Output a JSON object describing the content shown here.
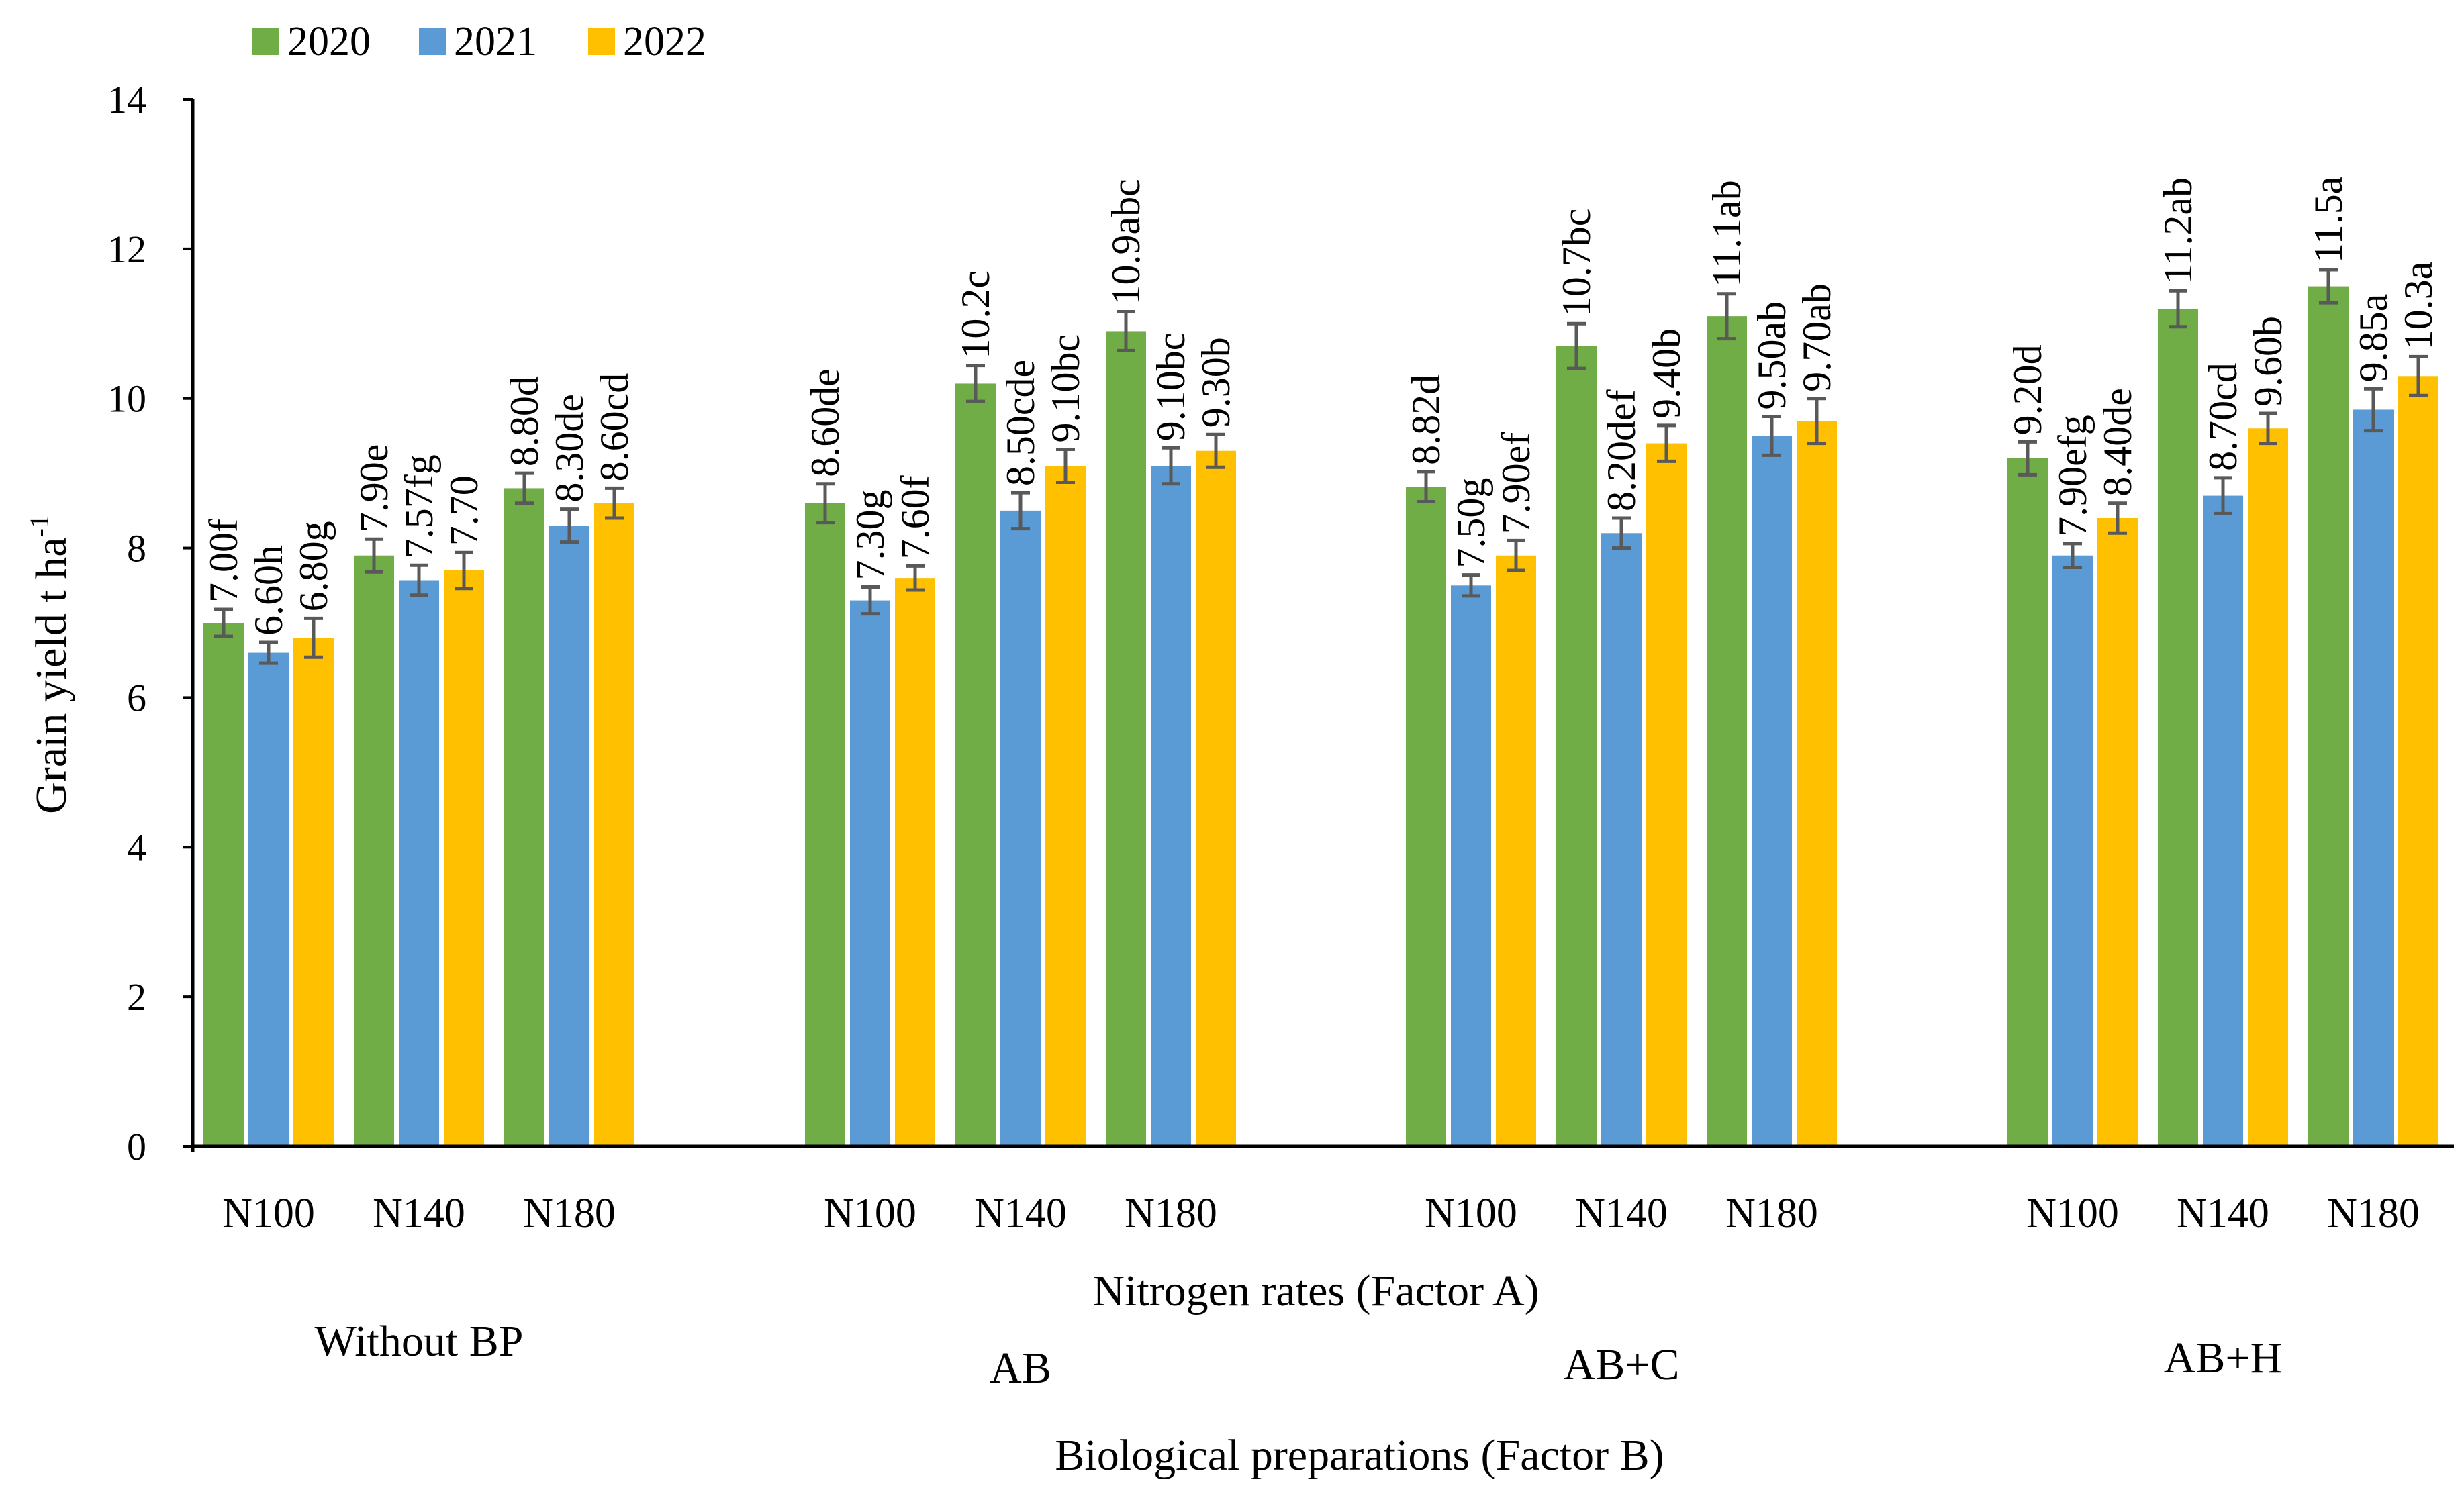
{
  "chart_data": {
    "type": "bar",
    "title": "",
    "ylabel": "Grain yield t ha",
    "ylabel_superscript": "-1",
    "xlabel_inner": "Nitrogen rates (Factor A)",
    "xlabel_outer": "Biological preparations (Factor B)",
    "ylim": [
      0,
      14
    ],
    "yticks": [
      "0",
      "2",
      "4",
      "6",
      "8",
      "10",
      "12",
      "14"
    ],
    "legend": [
      "2020",
      "2021",
      "2022"
    ],
    "colors": {
      "2020": "#70ad47",
      "2021": "#5b9bd5",
      "2022": "#ffc000",
      "error_bar": "#595959",
      "axis": "#000000"
    },
    "groups": [
      {
        "name": "Without BP",
        "categories": [
          {
            "name": "N100",
            "values": [
              7.0,
              6.6,
              6.8
            ],
            "errors": [
              0.18,
              0.14,
              0.26
            ],
            "labels": [
              "7.00f",
              "6.60h",
              "6.80g"
            ]
          },
          {
            "name": "N140",
            "values": [
              7.9,
              7.57,
              7.7
            ],
            "errors": [
              0.22,
              0.2,
              0.24
            ],
            "labels": [
              "7.90e",
              "7.57fg",
              "7.70"
            ]
          },
          {
            "name": "N180",
            "values": [
              8.8,
              8.3,
              8.6
            ],
            "errors": [
              0.2,
              0.22,
              0.2
            ],
            "labels": [
              "8.80d",
              "8.30de",
              "8.60cd"
            ]
          }
        ]
      },
      {
        "name": "AB",
        "categories": [
          {
            "name": "N100",
            "values": [
              8.6,
              7.3,
              7.6
            ],
            "errors": [
              0.26,
              0.18,
              0.16
            ],
            "labels": [
              "8.60de",
              "7.30g",
              "7.60f"
            ]
          },
          {
            "name": "N140",
            "values": [
              10.2,
              8.5,
              9.1
            ],
            "errors": [
              0.24,
              0.24,
              0.22
            ],
            "labels": [
              "10.2c",
              "8.50cde",
              "9.10bc"
            ]
          },
          {
            "name": "N180",
            "values": [
              10.9,
              9.1,
              9.3
            ],
            "errors": [
              0.26,
              0.24,
              0.22
            ],
            "labels": [
              "10.9abc",
              "9.10bc",
              "9.30b"
            ]
          }
        ]
      },
      {
        "name": "AB+C",
        "categories": [
          {
            "name": "N100",
            "values": [
              8.82,
              7.5,
              7.9
            ],
            "errors": [
              0.2,
              0.14,
              0.2
            ],
            "labels": [
              "8.82d",
              "7.50g",
              "7.90ef"
            ]
          },
          {
            "name": "N140",
            "values": [
              10.7,
              8.2,
              9.4
            ],
            "errors": [
              0.3,
              0.2,
              0.24
            ],
            "labels": [
              "10.7bc",
              "8.20def",
              "9.40b"
            ]
          },
          {
            "name": "N180",
            "values": [
              11.1,
              9.5,
              9.7
            ],
            "errors": [
              0.3,
              0.26,
              0.3
            ],
            "labels": [
              "11.1ab",
              "9.50ab",
              "9.70ab"
            ]
          }
        ]
      },
      {
        "name": "AB+H",
        "categories": [
          {
            "name": "N100",
            "values": [
              9.2,
              7.9,
              8.4
            ],
            "errors": [
              0.22,
              0.16,
              0.2
            ],
            "labels": [
              "9.20d",
              "7.90efg",
              "8.40de"
            ]
          },
          {
            "name": "N140",
            "values": [
              11.2,
              8.7,
              9.6
            ],
            "errors": [
              0.24,
              0.24,
              0.2
            ],
            "labels": [
              "11.2ab",
              "8.70cd",
              "9.60b"
            ]
          },
          {
            "name": "N180",
            "values": [
              11.5,
              9.85,
              10.3
            ],
            "errors": [
              0.22,
              0.28,
              0.26
            ],
            "labels": [
              "11.5a",
              "9.85a",
              "10.3a"
            ]
          }
        ]
      }
    ]
  }
}
